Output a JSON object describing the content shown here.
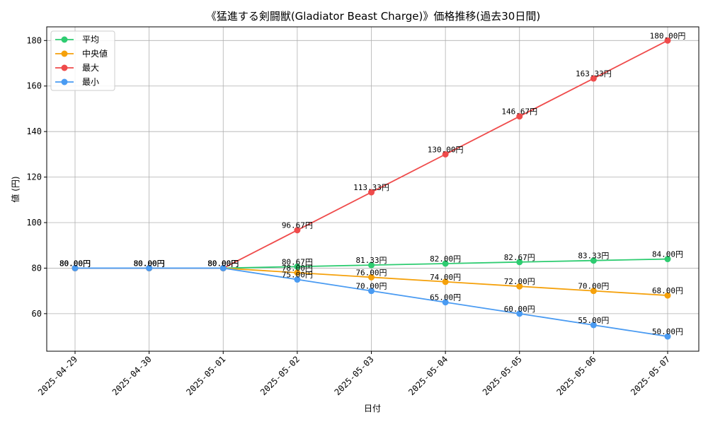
{
  "chart_data": {
    "type": "line",
    "title": "《猛進する剣闘獣(Gladiator Beast Charge)》価格推移(過去30日間)",
    "xlabel": "日付",
    "ylabel": "値 (円)",
    "ylim": [
      43.5,
      186
    ],
    "yticks": [
      60,
      80,
      100,
      120,
      140,
      160,
      180
    ],
    "grid": true,
    "legend_position": "top-left",
    "label_suffix": "円",
    "categories": [
      "2025-04-29",
      "2025-04-30",
      "2025-05-01",
      "2025-05-02",
      "2025-05-03",
      "2025-05-04",
      "2025-05-05",
      "2025-05-06",
      "2025-05-07"
    ],
    "series": [
      {
        "name": "平均",
        "color": "#2ecc71",
        "values": [
          80.0,
          80.0,
          80.0,
          80.67,
          81.33,
          82.0,
          82.67,
          83.33,
          84.0
        ],
        "labels": [
          "80.00円",
          "80.00円",
          "80.00円",
          "80.67円",
          "81.33円",
          "82.00円",
          "82.67円",
          "83.33円",
          "84.00円"
        ]
      },
      {
        "name": "中央値",
        "color": "#f5a10b",
        "values": [
          80.0,
          80.0,
          80.0,
          78.0,
          76.0,
          74.0,
          72.0,
          70.0,
          68.0
        ],
        "labels": [
          "80.00円",
          "80.00円",
          "80.00円",
          "78.00円",
          "76.00円",
          "74.00円",
          "72.00円",
          "70.00円",
          "68.00円"
        ]
      },
      {
        "name": "最大",
        "color": "#ef4b4b",
        "values": [
          80.0,
          80.0,
          80.0,
          96.67,
          113.33,
          130.0,
          146.67,
          163.33,
          180.0
        ],
        "labels": [
          "80.00円",
          "80.00円",
          "80.00円",
          "96.67円",
          "113.33円",
          "130.00円",
          "146.67円",
          "163.33円",
          "180.00円"
        ]
      },
      {
        "name": "最小",
        "color": "#4a9bf2",
        "values": [
          80.0,
          80.0,
          80.0,
          75.0,
          70.0,
          65.0,
          60.0,
          55.0,
          50.0
        ],
        "labels": [
          "80.00円",
          "80.00円",
          "80.00円",
          "75.00円",
          "70.00円",
          "65.00円",
          "60.00円",
          "55.00円",
          "50.00円"
        ]
      }
    ]
  }
}
